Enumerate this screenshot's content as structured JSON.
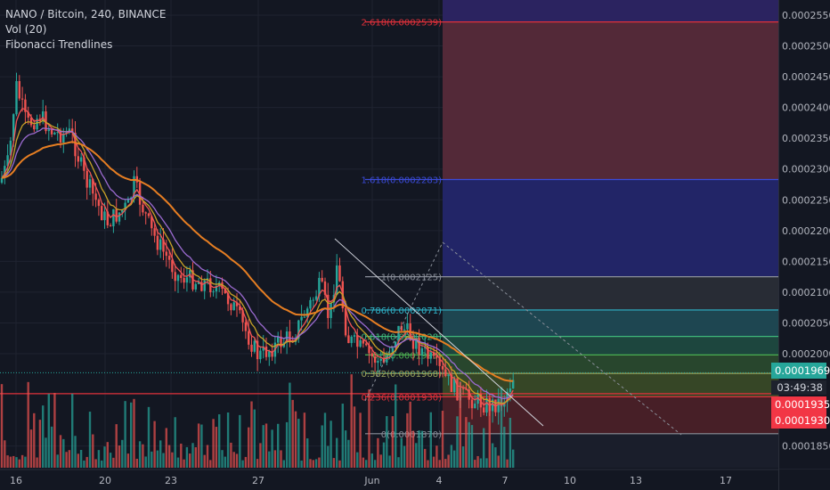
{
  "legend": {
    "symbol_line": "NANO / Bitcoin, 240, BINANCE",
    "volume_label": "Vol (20)",
    "indicator_label": "Fibonacci Trendlines"
  },
  "price_axis": {
    "ticks": [
      "0.0002550",
      "0.0002500",
      "0.0002450",
      "0.0002400",
      "0.0002350",
      "0.0002300",
      "0.0002250",
      "0.0002200",
      "0.0002150",
      "0.0002100",
      "0.0002050",
      "0.0002000",
      "0.0001850"
    ],
    "tick_values": [
      0.000255,
      0.00025,
      0.000245,
      0.00024,
      0.000235,
      0.00023,
      0.000225,
      0.00022,
      0.000215,
      0.00021,
      0.000205,
      0.0002,
      0.000185
    ]
  },
  "time_axis": {
    "labels": [
      "16",
      "20",
      "23",
      "27",
      "Jun",
      "4",
      "7",
      "10",
      "13",
      "17"
    ]
  },
  "price_labels": {
    "last": "0.0001969",
    "countdown": "03:49:38",
    "bid": "0.0001935",
    "ask": "0.0001930"
  },
  "fib_levels": [
    {
      "label": "2.618(0.0002539)",
      "value": 0.0002539,
      "color": "#e0303a"
    },
    {
      "label": "1.618(0.0002283)",
      "value": 0.0002283,
      "color": "#3b4bd9"
    },
    {
      "label": "1(0.0002125)",
      "value": 0.0002125,
      "color": "#8a8f99"
    },
    {
      "label": "0.786(0.0002071)",
      "value": 0.0002071,
      "color": "#2fb4c9"
    },
    {
      "label": "0.618(0.0002028)",
      "value": 0.0002028,
      "color": "#3fb87a"
    },
    {
      "label": "0.5(0.0001998)",
      "value": 0.0001998,
      "color": "#4caf50"
    },
    {
      "label": "0.382(0.0001968)",
      "value": 0.0001968,
      "color": "#9aa35a"
    },
    {
      "label": "0.236(0.0001930)",
      "value": 0.000193,
      "color": "#e0303a"
    },
    {
      "label": "0(0.0001870)",
      "value": 0.000187,
      "color": "#8a8f99"
    }
  ],
  "colors": {
    "background": "#131722",
    "up": "#26a69a",
    "down": "#ef5350",
    "grid": "#1f2330",
    "ema_orange": "#e67e22",
    "ema_purple": "#9c6bd1",
    "ema_red": "#f05454",
    "ema_yellow": "#c9a227"
  }
}
